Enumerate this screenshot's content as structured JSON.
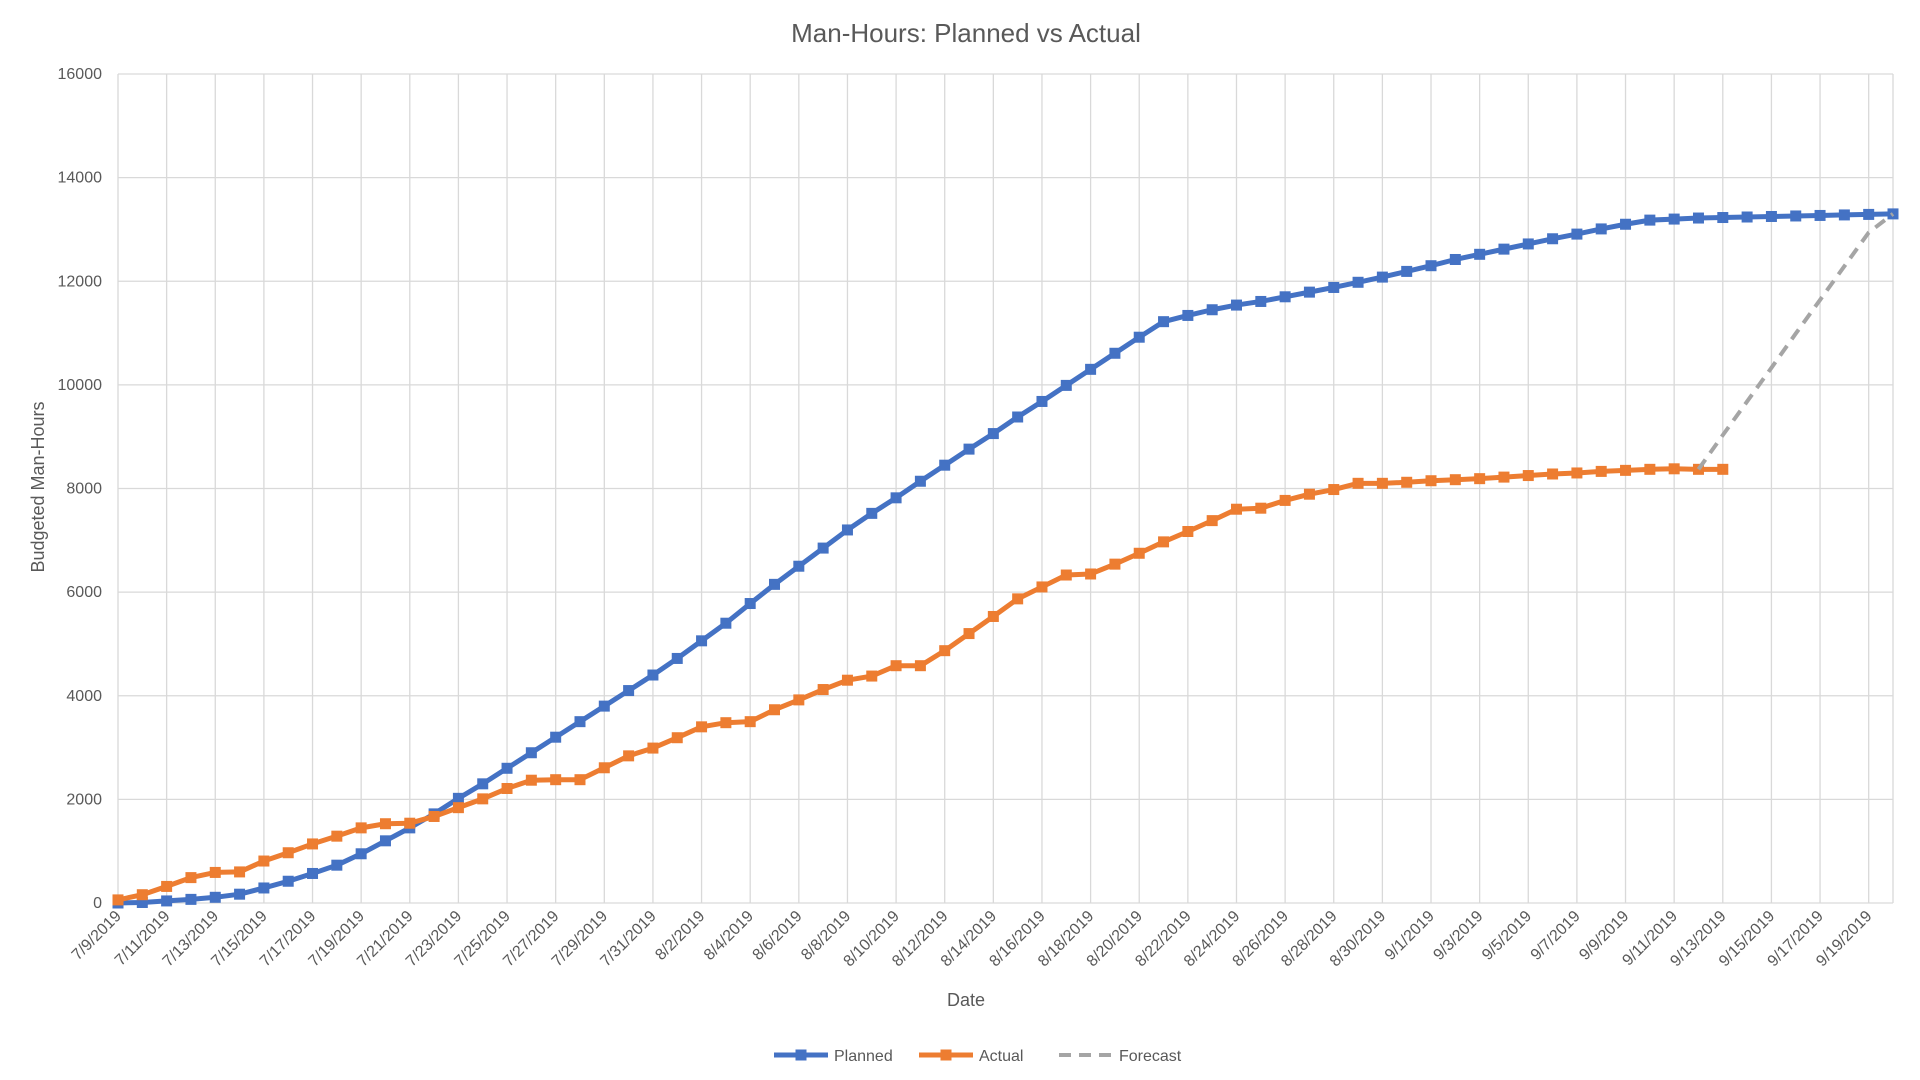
{
  "chart_data": {
    "type": "line",
    "title": "Man-Hours: Planned vs Actual",
    "xlabel": "Date",
    "ylabel": "Budgeted Man-Hours",
    "ylim": [
      0,
      16000
    ],
    "yticks": [
      0,
      2000,
      4000,
      6000,
      8000,
      10000,
      12000,
      14000,
      16000
    ],
    "x_tick_labels": [
      "7/9/2019",
      "7/11/2019",
      "7/13/2019",
      "7/15/2019",
      "7/17/2019",
      "7/19/2019",
      "7/21/2019",
      "7/23/2019",
      "7/25/2019",
      "7/27/2019",
      "7/29/2019",
      "7/31/2019",
      "8/2/2019",
      "8/4/2019",
      "8/6/2019",
      "8/8/2019",
      "8/10/2019",
      "8/12/2019",
      "8/14/2019",
      "8/16/2019",
      "8/18/2019",
      "8/20/2019",
      "8/22/2019",
      "8/24/2019",
      "8/26/2019",
      "8/28/2019",
      "8/30/2019",
      "9/1/2019",
      "9/3/2019",
      "9/5/2019",
      "9/7/2019",
      "9/9/2019",
      "9/11/2019",
      "9/13/2019",
      "9/15/2019",
      "9/17/2019",
      "9/19/2019"
    ],
    "x": [
      "7/9/2019",
      "7/10/2019",
      "7/11/2019",
      "7/12/2019",
      "7/13/2019",
      "7/14/2019",
      "7/15/2019",
      "7/16/2019",
      "7/17/2019",
      "7/18/2019",
      "7/19/2019",
      "7/20/2019",
      "7/21/2019",
      "7/22/2019",
      "7/23/2019",
      "7/24/2019",
      "7/25/2019",
      "7/26/2019",
      "7/27/2019",
      "7/28/2019",
      "7/29/2019",
      "7/30/2019",
      "7/31/2019",
      "8/1/2019",
      "8/2/2019",
      "8/3/2019",
      "8/4/2019",
      "8/5/2019",
      "8/6/2019",
      "8/7/2019",
      "8/8/2019",
      "8/9/2019",
      "8/10/2019",
      "8/11/2019",
      "8/12/2019",
      "8/13/2019",
      "8/14/2019",
      "8/15/2019",
      "8/16/2019",
      "8/17/2019",
      "8/18/2019",
      "8/19/2019",
      "8/20/2019",
      "8/21/2019",
      "8/22/2019",
      "8/23/2019",
      "8/24/2019",
      "8/25/2019",
      "8/26/2019",
      "8/27/2019",
      "8/28/2019",
      "8/29/2019",
      "8/30/2019",
      "8/31/2019",
      "9/1/2019",
      "9/2/2019",
      "9/3/2019",
      "9/4/2019",
      "9/5/2019",
      "9/6/2019",
      "9/7/2019",
      "9/8/2019",
      "9/9/2019",
      "9/10/2019",
      "9/11/2019",
      "9/12/2019",
      "9/13/2019",
      "9/14/2019",
      "9/15/2019",
      "9/16/2019",
      "9/17/2019",
      "9/18/2019",
      "9/19/2019",
      "9/20/2019"
    ],
    "series": [
      {
        "name": "Planned",
        "color": "#4472c4",
        "line": "solid",
        "marker": "square",
        "values": [
          0,
          10,
          40,
          70,
          110,
          170,
          290,
          420,
          570,
          730,
          950,
          1200,
          1450,
          1720,
          2020,
          2300,
          2600,
          2900,
          3200,
          3500,
          3800,
          4100,
          4400,
          4720,
          5060,
          5400,
          5780,
          6150,
          6500,
          6850,
          7200,
          7520,
          7820,
          8140,
          8450,
          8760,
          9060,
          9380,
          9680,
          9990,
          10300,
          10610,
          10920,
          11220,
          11340,
          11450,
          11540,
          11610,
          11700,
          11790,
          11880,
          11980,
          12080,
          12190,
          12300,
          12420,
          12520,
          12620,
          12720,
          12820,
          12910,
          13010,
          13100,
          13180,
          13200,
          13220,
          13230,
          13240,
          13250,
          13260,
          13270,
          13280,
          13290,
          13300
        ]
      },
      {
        "name": "Actual",
        "color": "#ed7d31",
        "line": "solid",
        "marker": "square",
        "values": [
          60,
          160,
          320,
          490,
          590,
          600,
          810,
          970,
          1140,
          1290,
          1450,
          1530,
          1540,
          1670,
          1840,
          2010,
          2210,
          2370,
          2380,
          2380,
          2610,
          2840,
          2990,
          3190,
          3400,
          3480,
          3500,
          3730,
          3920,
          4120,
          4300,
          4380,
          4580,
          4580,
          4870,
          5200,
          5530,
          5870,
          6100,
          6330,
          6350,
          6540,
          6750,
          6970,
          7170,
          7380,
          7600,
          7620,
          7770,
          7890,
          7980,
          8100,
          8100,
          8120,
          8150,
          8170,
          8190,
          8220,
          8250,
          8280,
          8300,
          8330,
          8350,
          8370,
          8380,
          8370,
          8370,
          null,
          null,
          null,
          null,
          null,
          null,
          null
        ]
      },
      {
        "name": "Forecast",
        "color": "#a5a5a5",
        "line": "dashed",
        "marker": "none",
        "values": [
          null,
          null,
          null,
          null,
          null,
          null,
          null,
          null,
          null,
          null,
          null,
          null,
          null,
          null,
          null,
          null,
          null,
          null,
          null,
          null,
          null,
          null,
          null,
          null,
          null,
          null,
          null,
          null,
          null,
          null,
          null,
          null,
          null,
          null,
          null,
          null,
          null,
          null,
          null,
          null,
          null,
          null,
          null,
          null,
          null,
          null,
          null,
          null,
          null,
          null,
          null,
          null,
          null,
          null,
          null,
          null,
          null,
          null,
          null,
          null,
          null,
          null,
          null,
          null,
          null,
          8370,
          9030,
          9680,
          10330,
          10990,
          11640,
          12290,
          12940,
          13300
        ]
      }
    ],
    "grid": true,
    "legend_position": "bottom"
  }
}
